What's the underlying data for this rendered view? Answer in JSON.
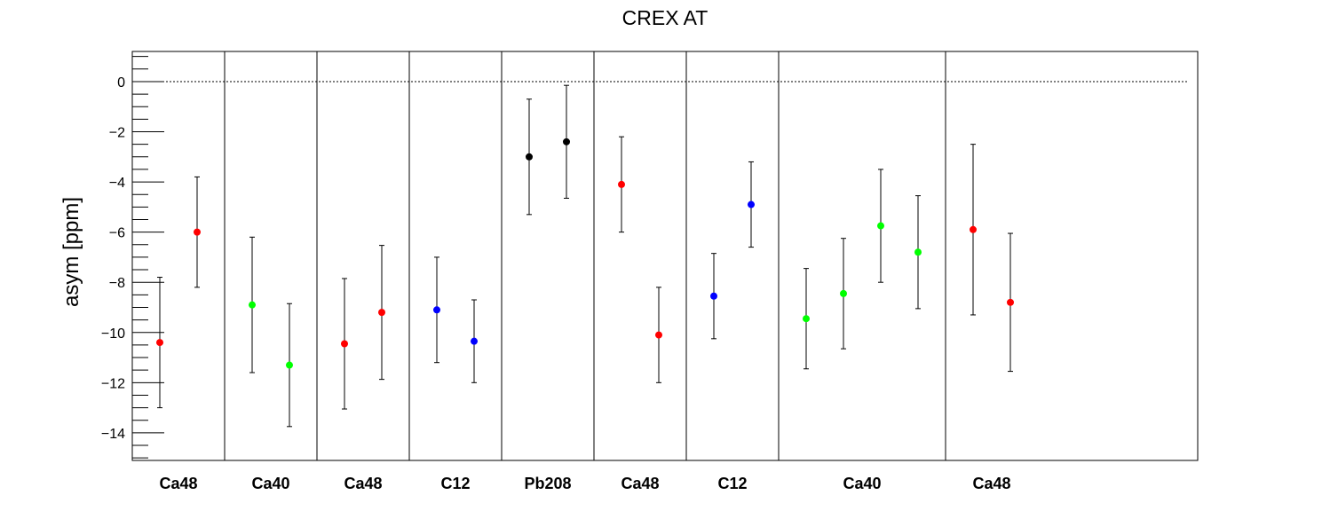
{
  "chart_data": {
    "type": "scatter",
    "title": "CREX AT",
    "xlabel": "",
    "ylabel": "asym [ppm]",
    "ylim": [
      -15.1,
      1.2
    ],
    "yticks": [
      0,
      -2,
      -4,
      -6,
      -8,
      -10,
      -12,
      -14
    ],
    "ytick_labels": [
      "0",
      "−2",
      "−4",
      "−6",
      "−8",
      "−10",
      "−12",
      "−14"
    ],
    "reference_line": {
      "y": 0,
      "style": "dotted"
    },
    "grid": false,
    "legend": "none",
    "groups": [
      {
        "label": "Ca48",
        "color": "#ff0000",
        "points": [
          {
            "value": -10.4,
            "err": 2.6
          },
          {
            "value": -6.0,
            "err": 2.2
          }
        ]
      },
      {
        "label": "Ca40",
        "color": "#00ff00",
        "points": [
          {
            "value": -8.9,
            "err": 2.7
          },
          {
            "value": -11.3,
            "err": 2.45
          }
        ]
      },
      {
        "label": "Ca48",
        "color": "#ff0000",
        "points": [
          {
            "value": -10.45,
            "err": 2.6
          },
          {
            "value": -9.2,
            "err": 2.67
          }
        ]
      },
      {
        "label": "C12",
        "color": "#0000ff",
        "points": [
          {
            "value": -9.1,
            "err": 2.1
          },
          {
            "value": -10.35,
            "err": 1.65
          }
        ]
      },
      {
        "label": "Pb208",
        "color": "#000000",
        "points": [
          {
            "value": -3.0,
            "err": 2.3
          },
          {
            "value": -2.4,
            "err": 2.25
          }
        ]
      },
      {
        "label": "Ca48",
        "color": "#ff0000",
        "points": [
          {
            "value": -4.1,
            "err": 1.9
          },
          {
            "value": -10.1,
            "err": 1.9
          }
        ]
      },
      {
        "label": "C12",
        "color": "#0000ff",
        "points": [
          {
            "value": -8.55,
            "err": 1.7
          },
          {
            "value": -4.9,
            "err": 1.7
          }
        ]
      },
      {
        "label": "Ca40",
        "color": "#00ff00",
        "points": [
          {
            "value": -9.45,
            "err": 2.0
          },
          {
            "value": -8.45,
            "err": 2.2
          },
          {
            "value": -5.75,
            "err": 2.25
          },
          {
            "value": -6.8,
            "err": 2.25
          }
        ]
      },
      {
        "label": "Ca48",
        "color": "#ff0000",
        "points": [
          {
            "value": -5.9,
            "err": 3.4
          },
          {
            "value": -8.8,
            "err": 2.75
          }
        ]
      }
    ]
  }
}
